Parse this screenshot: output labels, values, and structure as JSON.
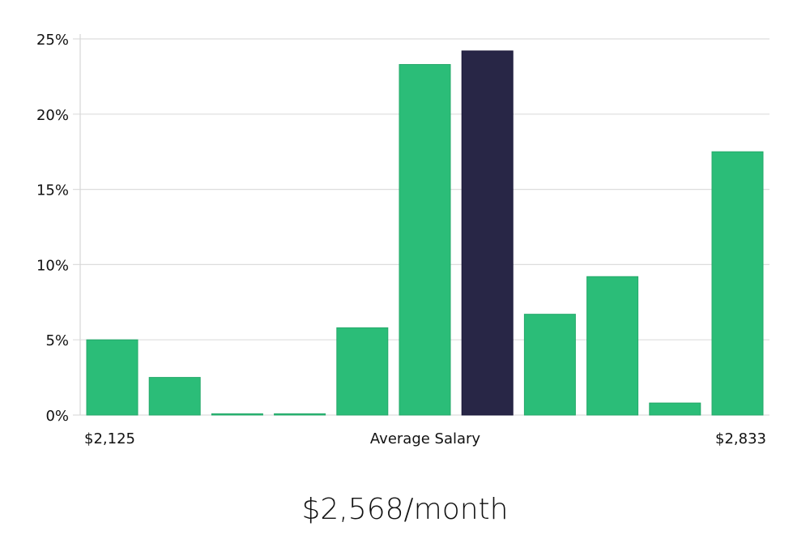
{
  "chart_data": {
    "type": "bar",
    "title": "",
    "xlabel": "Average Salary",
    "ylabel": "",
    "ylim": [
      0,
      25
    ],
    "yticks": [
      "0%",
      "5%",
      "10%",
      "15%",
      "20%",
      "25%"
    ],
    "ytick_values": [
      0,
      5,
      10,
      15,
      20,
      25
    ],
    "x_range_labels": {
      "min": "$2,125",
      "max": "$2,833"
    },
    "categories": [
      "bin1",
      "bin2",
      "bin3",
      "bin4",
      "bin5",
      "bin6",
      "bin7",
      "bin8",
      "bin9",
      "bin10",
      "bin11"
    ],
    "values": [
      5.0,
      2.5,
      0.0,
      0.0,
      5.8,
      23.3,
      24.2,
      6.7,
      9.2,
      0.8,
      17.5
    ],
    "highlight_index": 6,
    "grid": true,
    "legend": "none",
    "colors": {
      "bar": "#2bbd78",
      "highlight": "#282646",
      "grid": "#dddddd"
    }
  },
  "axis": {
    "min_label": "$2,125",
    "center_label": "Average Salary",
    "max_label": "$2,833"
  },
  "headline": "$2,568/month"
}
